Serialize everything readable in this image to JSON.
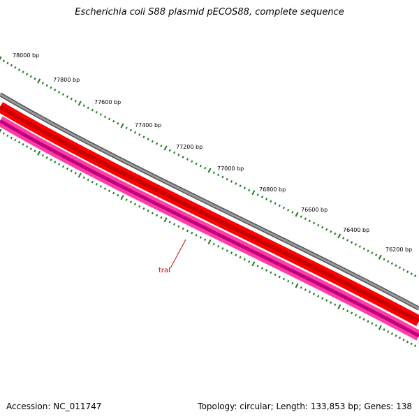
{
  "title": "Escherichia coli S88 plasmid pECOS88, complete sequence",
  "footer": {
    "accession": "Accession: NC_011747",
    "summary": "Topology: circular; Length: 133,853 bp; Genes: 138"
  },
  "ruler": {
    "labels": [
      "78000 bp",
      "77800 bp",
      "77600 bp",
      "77400 bp",
      "77200 bp",
      "77000 bp",
      "76800 bp",
      "76600 bp",
      "76400 bp",
      "76200 bp"
    ],
    "tick_color": "#1a7a1a"
  },
  "tracks": {
    "backbone_color": "#7a7a7a",
    "forward_gene_color": "#ff0000",
    "reverse_gene_color": "#ff1493"
  },
  "gene_labels": [
    {
      "name": "traI",
      "color": "#d00000"
    }
  ]
}
